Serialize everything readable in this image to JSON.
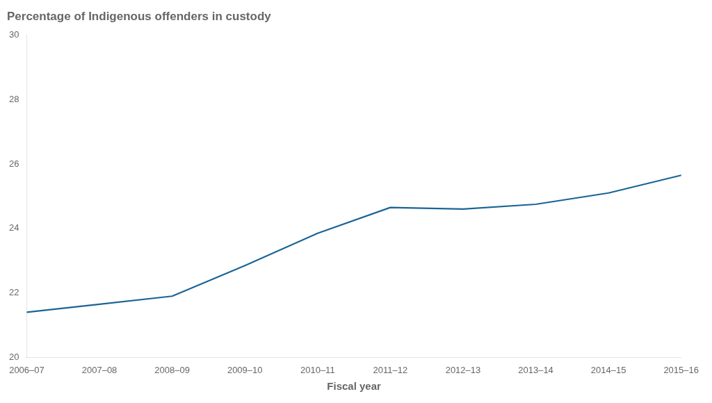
{
  "chart_data": {
    "type": "line",
    "title": "Percentage of Indigenous offenders in custody",
    "xlabel": "Fiscal year",
    "categories": [
      "2006–07",
      "2007–08",
      "2008–09",
      "2009–10",
      "2010–11",
      "2011–12",
      "2012–13",
      "2013–14",
      "2014–15",
      "2015–16"
    ],
    "values": [
      21.4,
      21.65,
      21.9,
      22.85,
      23.85,
      24.65,
      24.6,
      24.75,
      25.1,
      25.65
    ],
    "color": "#1a6496",
    "ylim": [
      20,
      30
    ],
    "yticks": [
      20,
      22,
      24,
      26,
      28,
      30
    ],
    "grid": false
  }
}
